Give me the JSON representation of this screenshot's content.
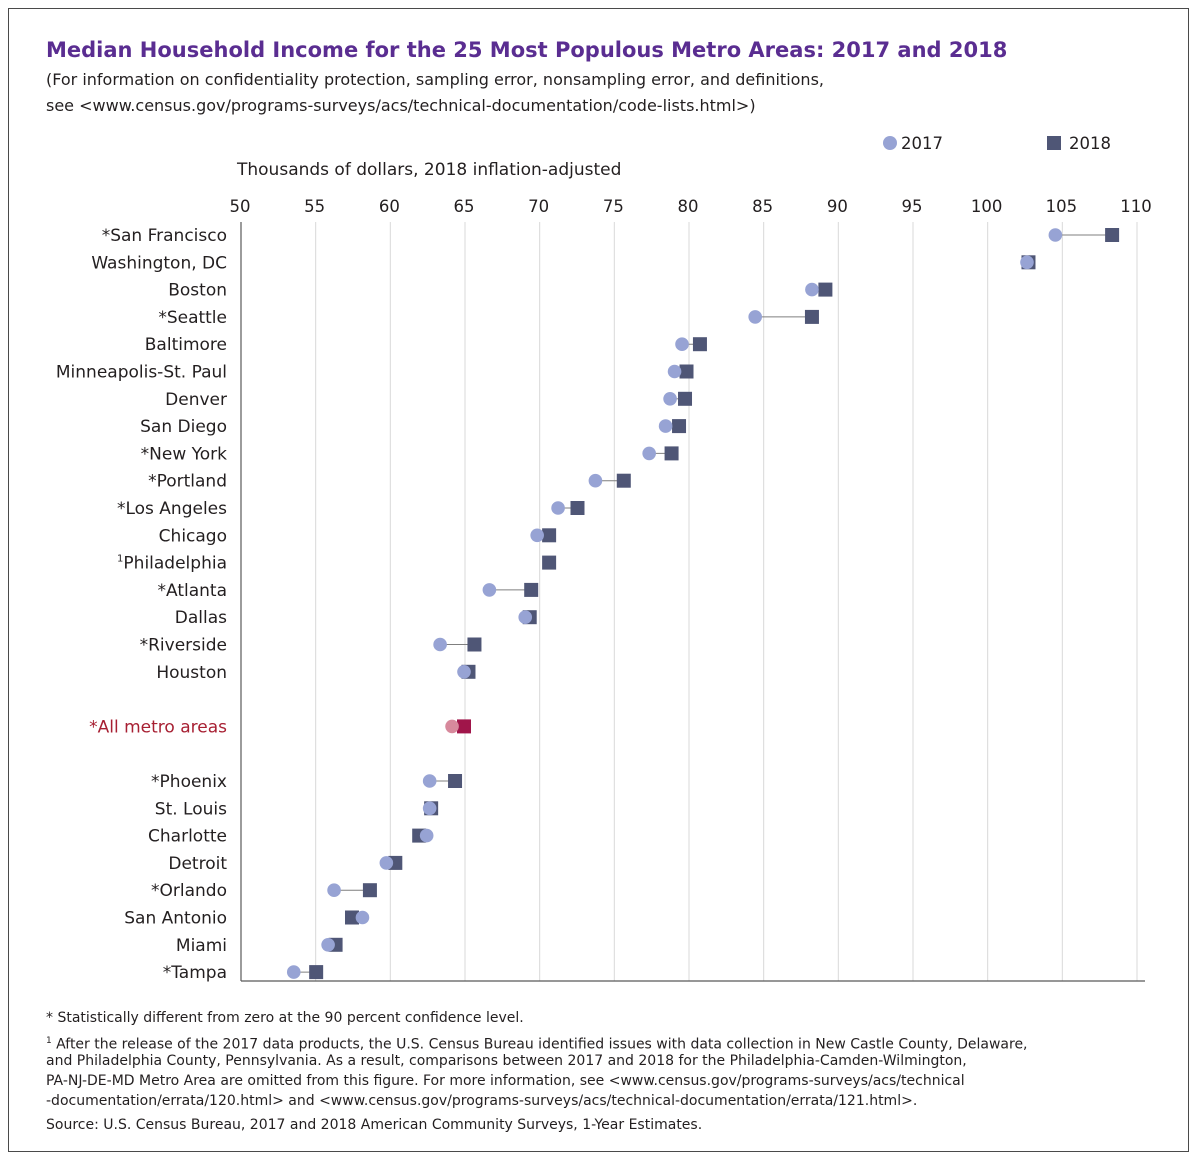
{
  "title": "Median Household Income for the 25 Most Populous Metro Areas: 2017 and 2018",
  "subtitle_lines": [
    "(For information on confidentiality protection, sampling error, nonsampling error, and definitions,",
    "see <www.census.gov/programs-surveys/acs/technical-documentation/code-lists.html>)"
  ],
  "legend": {
    "label_2017": "2017",
    "label_2018": "2018",
    "position": "top-right"
  },
  "colors": {
    "c2017": "#97a3d4",
    "c2018": "#4f5676",
    "all_2017": "#d7899c",
    "all_2018": "#a0154a",
    "highlight_label": "#a71f32",
    "grid": "#d9d9d9",
    "axis": "#595959"
  },
  "chart_data": {
    "type": "scatter",
    "xlabel": "Thousands of dollars, 2018 inflation-adjusted",
    "xlim": [
      50,
      110
    ],
    "xticks": [
      50,
      55,
      60,
      65,
      70,
      75,
      80,
      85,
      90,
      95,
      100,
      105,
      110
    ],
    "grid": true,
    "series_names": [
      "2017",
      "2018"
    ],
    "rows": [
      {
        "label": "*San Francisco",
        "v2017": 104.6,
        "v2018": 108.4
      },
      {
        "label": "Washington, DC",
        "v2017": 102.7,
        "v2018": 102.8
      },
      {
        "label": "Boston",
        "v2017": 88.3,
        "v2018": 89.2
      },
      {
        "label": "*Seattle",
        "v2017": 84.5,
        "v2018": 88.3
      },
      {
        "label": "Baltimore",
        "v2017": 79.6,
        "v2018": 80.8
      },
      {
        "label": "Minneapolis-St. Paul",
        "v2017": 79.1,
        "v2018": 79.9
      },
      {
        "label": "Denver",
        "v2017": 78.8,
        "v2018": 79.8
      },
      {
        "label": "San Diego",
        "v2017": 78.5,
        "v2018": 79.4
      },
      {
        "label": "*New York",
        "v2017": 77.4,
        "v2018": 78.9
      },
      {
        "label": "*Portland",
        "v2017": 73.8,
        "v2018": 75.7
      },
      {
        "label": "*Los Angeles",
        "v2017": 71.3,
        "v2018": 72.6
      },
      {
        "label": "Chicago",
        "v2017": 69.9,
        "v2018": 70.7
      },
      {
        "label": "Philadelphia",
        "sup": "1",
        "v2017": null,
        "v2018": 70.7
      },
      {
        "label": "*Atlanta",
        "v2017": 66.7,
        "v2018": 69.5
      },
      {
        "label": "Dallas",
        "v2017": 69.1,
        "v2018": 69.4
      },
      {
        "label": "*Riverside",
        "v2017": 63.4,
        "v2018": 65.7
      },
      {
        "label": "Houston",
        "v2017": 65.0,
        "v2018": 65.3
      },
      {
        "label": "*All metro areas",
        "v2017": 64.2,
        "v2018": 65.0,
        "highlight": true,
        "gap_before": true
      },
      {
        "label": "*Phoenix",
        "v2017": 62.7,
        "v2018": 64.4,
        "gap_before": true
      },
      {
        "label": "St. Louis",
        "v2017": 62.7,
        "v2018": 62.8
      },
      {
        "label": "Charlotte",
        "v2017": 62.5,
        "v2018": 62.0
      },
      {
        "label": "Detroit",
        "v2017": 59.8,
        "v2018": 60.4
      },
      {
        "label": "*Orlando",
        "v2017": 56.3,
        "v2018": 58.7
      },
      {
        "label": "San Antonio",
        "v2017": 58.2,
        "v2018": 57.5
      },
      {
        "label": "Miami",
        "v2017": 55.9,
        "v2018": 56.4
      },
      {
        "label": "*Tampa",
        "v2017": 53.6,
        "v2018": 55.1
      }
    ]
  },
  "footnotes": {
    "asterisk": "* Statistically different from zero at the 90 percent confidence level.",
    "note1_sup": "1",
    "note1_lines": [
      " After the release of the 2017 data products, the U.S. Census Bureau identified issues with data collection in New Castle County, Delaware,",
      "and Philadelphia County, Pennsylvania. As a result, comparisons between 2017 and 2018 for the Philadelphia-Camden-Wilmington,",
      "PA-NJ-DE-MD Metro Area are omitted from this figure. For more information, see <www.census.gov/programs-surveys/acs/technical",
      "-documentation/errata/120.html> and <www.census.gov/programs-surveys/acs/technical-documentation/errata/121.html>."
    ],
    "source": "Source: U.S. Census Bureau, 2017 and 2018 American Community Surveys, 1-Year Estimates."
  }
}
